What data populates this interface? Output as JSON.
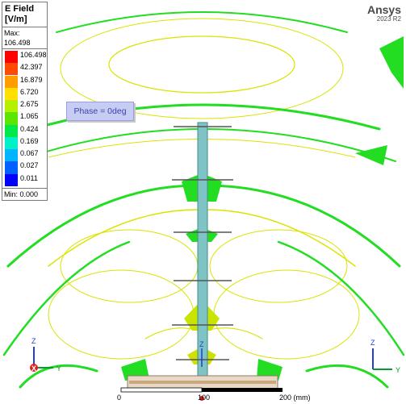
{
  "legend": {
    "title_line1": "E Field",
    "title_line2": "[V/m]",
    "max_label": "Max: 106.498",
    "min_label": "Min:  0.000",
    "levels": [
      {
        "value": "106.498",
        "color": "#ff0000"
      },
      {
        "value": "42.397",
        "color": "#ff4a00"
      },
      {
        "value": "16.879",
        "color": "#ff9c00"
      },
      {
        "value": "6.720",
        "color": "#ffe000"
      },
      {
        "value": "2.675",
        "color": "#b4f000"
      },
      {
        "value": "1.065",
        "color": "#5ae600"
      },
      {
        "value": "0.424",
        "color": "#00e84a"
      },
      {
        "value": "0.169",
        "color": "#00f0c8"
      },
      {
        "value": "0.067",
        "color": "#00b4ff"
      },
      {
        "value": "0.027",
        "color": "#0060ff"
      },
      {
        "value": "0.011",
        "color": "#0000ff"
      }
    ]
  },
  "phase": "Phase = 0deg",
  "brand": {
    "name": "Ansys",
    "version": "2023 R2"
  },
  "axes_triad": {
    "z": "Z",
    "x": "X",
    "y": "Y"
  },
  "ruler": {
    "zero": "0",
    "mid": "100",
    "end": "200 (mm)"
  },
  "colors": {
    "field_green": "#22dd22",
    "field_yellow": "#d8e800",
    "antenna": "#5aa0a0"
  }
}
